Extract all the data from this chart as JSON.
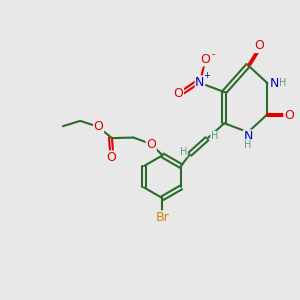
{
  "bg_color": "#e8e8e8",
  "bond_color": "#2d6b2d",
  "bond_lw": 1.5,
  "atom_colors": {
    "O": "#e00000",
    "N": "#0000cc",
    "Br": "#cc8800",
    "H": "#5a9a8a"
  },
  "font_size_atom": 9,
  "font_size_small": 7
}
